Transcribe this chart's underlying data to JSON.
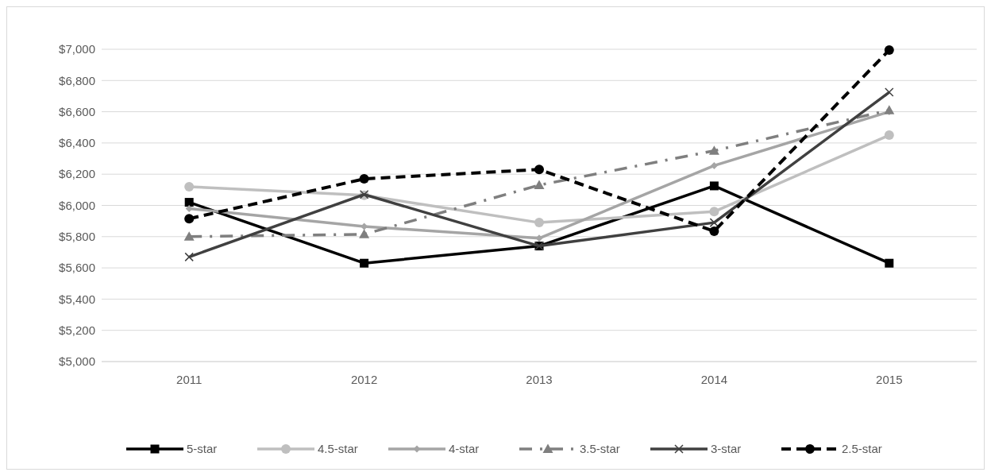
{
  "chart_data": {
    "type": "line",
    "categories": [
      "2011",
      "2012",
      "2013",
      "2014",
      "2015"
    ],
    "series": [
      {
        "name": "5-star",
        "color": "#000000",
        "marker": "square",
        "line_style": "solid",
        "values": [
          6020,
          5630,
          5740,
          6125,
          5630
        ]
      },
      {
        "name": "4.5-star",
        "color": "#bfbfbf",
        "marker": "circle",
        "line_style": "solid",
        "values": [
          6120,
          6065,
          5890,
          5960,
          6450
        ]
      },
      {
        "name": "4-star",
        "color": "#a5a5a5",
        "marker": "diamond",
        "line_style": "solid",
        "values": [
          5980,
          5865,
          5790,
          6255,
          6600
        ]
      },
      {
        "name": "3.5-star",
        "color": "#7f7f7f",
        "marker": "triangle",
        "line_style": "dashdot",
        "values": [
          5800,
          5815,
          6130,
          6350,
          6610
        ]
      },
      {
        "name": "3-star",
        "color": "#404040",
        "marker": "cross",
        "line_style": "solid",
        "values": [
          5670,
          6070,
          5740,
          5890,
          6725
        ]
      },
      {
        "name": "2.5-star",
        "color": "#000000",
        "marker": "circle",
        "line_style": "dashed",
        "values": [
          5915,
          6170,
          6230,
          5835,
          6995
        ]
      }
    ],
    "ylim": [
      5000,
      7000
    ],
    "yticks": [
      {
        "value": 5000,
        "label": "$5,000"
      },
      {
        "value": 5200,
        "label": "$5,200"
      },
      {
        "value": 5400,
        "label": "$5,400"
      },
      {
        "value": 5600,
        "label": "$5,600"
      },
      {
        "value": 5800,
        "label": "$5,800"
      },
      {
        "value": 6000,
        "label": "$6,000"
      },
      {
        "value": 6200,
        "label": "$6,200"
      },
      {
        "value": 6400,
        "label": "$6,400"
      },
      {
        "value": 6600,
        "label": "$6,600"
      },
      {
        "value": 6800,
        "label": "$6,800"
      },
      {
        "value": 7000,
        "label": "$7,000"
      }
    ],
    "grid": "y",
    "legend": "bottom"
  }
}
